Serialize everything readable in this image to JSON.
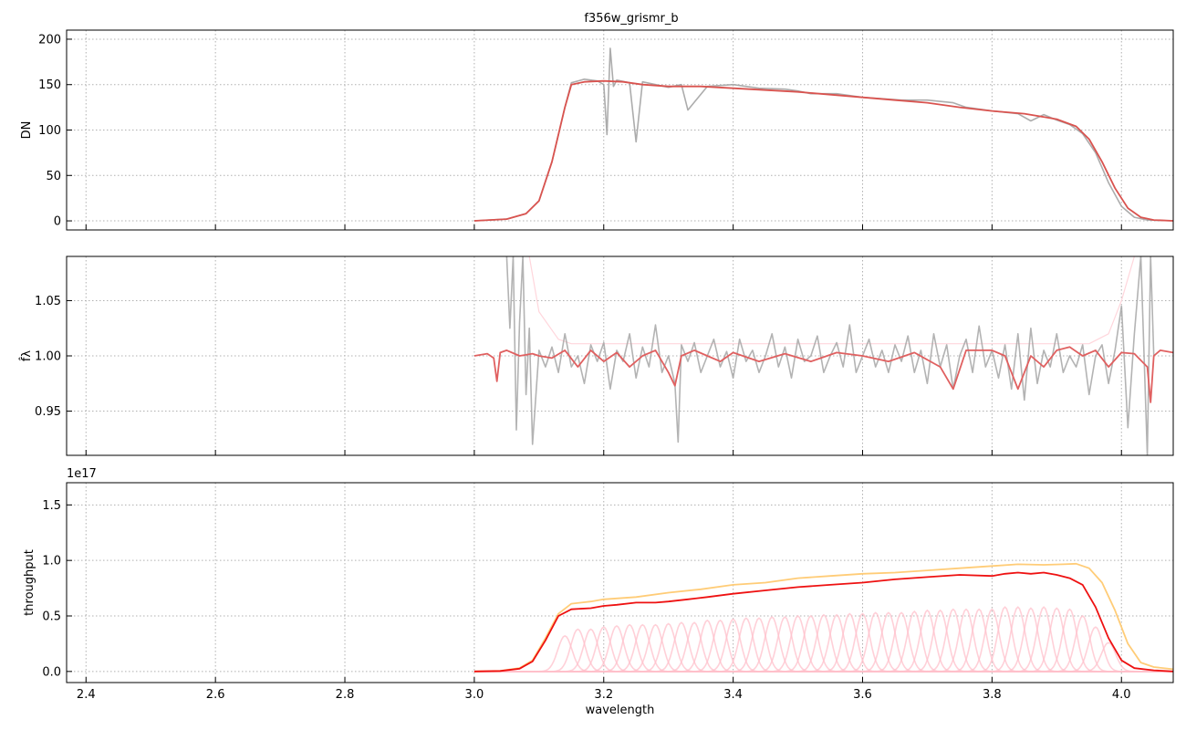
{
  "figure_title": "f356w_grismr_b",
  "chart_data": [
    {
      "type": "line",
      "id": "flux",
      "ylabel": "DN",
      "xlim": [
        2.37,
        4.08
      ],
      "ylim": [
        -10,
        210
      ],
      "yticks": [
        0,
        50,
        100,
        150,
        200
      ],
      "xticks": [
        2.4,
        2.6,
        2.8,
        3.0,
        3.2,
        3.4,
        3.6,
        3.8,
        4.0
      ],
      "show_xtick_labels": false,
      "grid": true,
      "series": [
        {
          "role": "data",
          "color": "#9e9e9e",
          "x": [
            3.0,
            3.05,
            3.08,
            3.1,
            3.12,
            3.14,
            3.15,
            3.17,
            3.19,
            3.2,
            3.205,
            3.21,
            3.215,
            3.22,
            3.24,
            3.25,
            3.26,
            3.28,
            3.3,
            3.32,
            3.33,
            3.36,
            3.4,
            3.44,
            3.48,
            3.5,
            3.52,
            3.56,
            3.6,
            3.64,
            3.66,
            3.7,
            3.74,
            3.76,
            3.8,
            3.84,
            3.86,
            3.88,
            3.9,
            3.92,
            3.94,
            3.96,
            3.98,
            4.0,
            4.02,
            4.04,
            4.08
          ],
          "y": [
            0,
            2,
            8,
            22,
            65,
            125,
            152,
            156,
            154,
            150,
            95,
            190,
            148,
            155,
            152,
            87,
            153,
            150,
            147,
            150,
            122,
            148,
            150,
            146,
            145,
            143,
            140,
            140,
            136,
            134,
            133,
            133,
            130,
            125,
            121,
            118,
            110,
            117,
            111,
            106,
            96,
            75,
            42,
            16,
            4,
            1,
            0
          ]
        },
        {
          "role": "model",
          "color": "#d9534f",
          "x": [
            3.0,
            3.05,
            3.08,
            3.1,
            3.12,
            3.14,
            3.15,
            3.17,
            3.2,
            3.23,
            3.26,
            3.3,
            3.35,
            3.4,
            3.45,
            3.5,
            3.55,
            3.6,
            3.65,
            3.7,
            3.75,
            3.8,
            3.85,
            3.9,
            3.93,
            3.95,
            3.97,
            3.99,
            4.01,
            4.03,
            4.05,
            4.08
          ],
          "y": [
            0,
            2,
            8,
            22,
            65,
            125,
            150,
            153,
            154,
            153,
            150,
            148,
            148,
            146,
            144,
            142,
            139,
            136,
            133,
            130,
            125,
            121,
            118,
            112,
            104,
            90,
            65,
            36,
            14,
            4,
            1,
            0
          ]
        }
      ]
    },
    {
      "type": "line",
      "id": "normalized",
      "ylabel": "f̂λ",
      "xlim": [
        2.37,
        4.08
      ],
      "ylim": [
        0.91,
        1.09
      ],
      "yticks": [
        0.95,
        1.0,
        1.05
      ],
      "ytick_labels": [
        "0.95",
        "1.00",
        "1.05"
      ],
      "xticks": [
        2.4,
        2.6,
        2.8,
        3.0,
        3.2,
        3.4,
        3.6,
        3.8,
        4.0
      ],
      "show_xtick_labels": false,
      "grid": true,
      "series": [
        {
          "role": "envelope",
          "color": "#ffd6dc",
          "x": [
            3.085,
            3.1,
            3.13,
            3.15,
            3.2,
            3.4,
            3.6,
            3.8,
            3.95,
            3.98,
            4.0,
            4.02
          ],
          "y": [
            1.09,
            1.04,
            1.015,
            1.011,
            1.011,
            1.011,
            1.011,
            1.011,
            1.011,
            1.02,
            1.05,
            1.09
          ]
        },
        {
          "role": "data",
          "color": "#a6a6a6",
          "x": [
            3.05,
            3.055,
            3.06,
            3.065,
            3.07,
            3.075,
            3.08,
            3.085,
            3.09,
            3.1,
            3.11,
            3.12,
            3.13,
            3.14,
            3.15,
            3.16,
            3.17,
            3.18,
            3.19,
            3.2,
            3.21,
            3.22,
            3.23,
            3.24,
            3.25,
            3.26,
            3.27,
            3.28,
            3.29,
            3.3,
            3.31,
            3.315,
            3.32,
            3.33,
            3.34,
            3.35,
            3.36,
            3.37,
            3.38,
            3.39,
            3.4,
            3.41,
            3.42,
            3.43,
            3.44,
            3.45,
            3.46,
            3.47,
            3.48,
            3.49,
            3.5,
            3.51,
            3.52,
            3.53,
            3.54,
            3.55,
            3.56,
            3.57,
            3.58,
            3.59,
            3.6,
            3.61,
            3.62,
            3.63,
            3.64,
            3.65,
            3.66,
            3.67,
            3.68,
            3.69,
            3.7,
            3.71,
            3.72,
            3.73,
            3.74,
            3.75,
            3.76,
            3.77,
            3.78,
            3.79,
            3.8,
            3.81,
            3.82,
            3.83,
            3.84,
            3.85,
            3.86,
            3.87,
            3.88,
            3.89,
            3.9,
            3.91,
            3.92,
            3.93,
            3.94,
            3.95,
            3.96,
            3.97,
            3.98,
            3.99,
            4.0,
            4.01,
            4.02,
            4.03,
            4.04,
            4.045,
            4.05
          ],
          "y": [
            1.09,
            1.025,
            1.09,
            0.933,
            1.03,
            1.09,
            0.965,
            1.025,
            0.92,
            1.005,
            0.99,
            1.008,
            0.985,
            1.02,
            0.99,
            1.0,
            0.975,
            1.01,
            0.995,
            1.012,
            0.97,
            1.005,
            0.995,
            1.02,
            0.98,
            1.008,
            0.99,
            1.028,
            0.985,
            1.0,
            0.975,
            0.922,
            1.01,
            0.995,
            1.012,
            0.985,
            1.0,
            1.015,
            0.99,
            1.004,
            0.98,
            1.015,
            0.995,
            1.005,
            0.985,
            1.0,
            1.02,
            0.99,
            1.008,
            0.98,
            1.015,
            0.995,
            1.0,
            1.018,
            0.985,
            1.0,
            1.012,
            0.99,
            1.028,
            0.985,
            1.0,
            1.015,
            0.99,
            1.005,
            0.985,
            1.01,
            0.995,
            1.018,
            0.985,
            1.005,
            0.975,
            1.02,
            0.99,
            1.01,
            0.97,
            1.0,
            1.015,
            0.985,
            1.027,
            0.99,
            1.005,
            0.98,
            1.01,
            0.97,
            1.02,
            0.96,
            1.025,
            0.975,
            1.005,
            0.99,
            1.02,
            0.985,
            1.0,
            0.99,
            1.01,
            0.965,
            1.0,
            1.01,
            0.975,
            1.005,
            1.045,
            0.935,
            1.02,
            1.09,
            0.91,
            1.09,
            1.0
          ]
        },
        {
          "role": "model",
          "color": "#e06060",
          "x": [
            3.0,
            3.02,
            3.03,
            3.035,
            3.04,
            3.05,
            3.07,
            3.09,
            3.1,
            3.12,
            3.14,
            3.16,
            3.18,
            3.2,
            3.22,
            3.24,
            3.26,
            3.28,
            3.3,
            3.31,
            3.32,
            3.34,
            3.36,
            3.38,
            3.4,
            3.44,
            3.48,
            3.52,
            3.56,
            3.6,
            3.64,
            3.68,
            3.72,
            3.74,
            3.76,
            3.8,
            3.82,
            3.84,
            3.86,
            3.88,
            3.9,
            3.92,
            3.94,
            3.96,
            3.98,
            4.0,
            4.02,
            4.04,
            4.045,
            4.05,
            4.06,
            4.08
          ],
          "y": [
            1.0,
            1.002,
            0.998,
            0.977,
            1.003,
            1.005,
            1.0,
            1.002,
            1.0,
            0.998,
            1.005,
            0.99,
            1.005,
            0.995,
            1.003,
            0.99,
            1.0,
            1.005,
            0.985,
            0.973,
            1.0,
            1.005,
            1.0,
            0.995,
            1.003,
            0.995,
            1.002,
            0.995,
            1.003,
            1.0,
            0.995,
            1.003,
            0.99,
            0.97,
            1.005,
            1.005,
            1.0,
            0.97,
            1.0,
            0.99,
            1.005,
            1.008,
            1.0,
            1.005,
            0.99,
            1.003,
            1.002,
            0.99,
            0.958,
            1.0,
            1.005,
            1.003
          ]
        }
      ]
    },
    {
      "type": "line",
      "id": "throughput",
      "ylabel": "throughput",
      "offset_text": "1e17",
      "xlabel": "wavelength",
      "xlim": [
        2.37,
        4.08
      ],
      "ylim": [
        -0.1,
        1.7
      ],
      "yticks": [
        0.0,
        0.5,
        1.0,
        1.5
      ],
      "ytick_labels": [
        "0.0",
        "0.5",
        "1.0",
        "1.5"
      ],
      "xticks": [
        2.4,
        2.6,
        2.8,
        3.0,
        3.2,
        3.4,
        3.6,
        3.8,
        4.0
      ],
      "xtick_labels": [
        "2.4",
        "2.6",
        "2.8",
        "3.0",
        "3.2",
        "3.4",
        "3.6",
        "3.8",
        "4.0"
      ],
      "show_xtick_labels": true,
      "grid": true,
      "components": {
        "color": "#ffc0cb",
        "centers": [
          3.14,
          3.16,
          3.18,
          3.2,
          3.22,
          3.24,
          3.26,
          3.28,
          3.3,
          3.32,
          3.34,
          3.36,
          3.38,
          3.4,
          3.42,
          3.44,
          3.46,
          3.48,
          3.5,
          3.52,
          3.54,
          3.56,
          3.58,
          3.6,
          3.62,
          3.64,
          3.66,
          3.68,
          3.7,
          3.72,
          3.74,
          3.76,
          3.78,
          3.8,
          3.82,
          3.84,
          3.86,
          3.88,
          3.9,
          3.92,
          3.94,
          3.96,
          3.98
        ],
        "peaks": [
          0.32,
          0.38,
          0.38,
          0.4,
          0.41,
          0.42,
          0.42,
          0.42,
          0.43,
          0.44,
          0.44,
          0.46,
          0.46,
          0.47,
          0.48,
          0.48,
          0.49,
          0.49,
          0.5,
          0.5,
          0.51,
          0.51,
          0.52,
          0.52,
          0.53,
          0.53,
          0.53,
          0.54,
          0.55,
          0.55,
          0.56,
          0.56,
          0.56,
          0.56,
          0.58,
          0.58,
          0.57,
          0.58,
          0.57,
          0.56,
          0.5,
          0.4,
          0.26
        ],
        "sigma": 0.011,
        "baseline": 0.0,
        "range": [
          3.0,
          4.08
        ]
      },
      "series": [
        {
          "role": "total",
          "color": "#ffcc77",
          "x": [
            3.0,
            3.04,
            3.07,
            3.09,
            3.11,
            3.13,
            3.15,
            3.18,
            3.2,
            3.25,
            3.3,
            3.35,
            3.4,
            3.45,
            3.5,
            3.55,
            3.6,
            3.65,
            3.7,
            3.75,
            3.8,
            3.84,
            3.88,
            3.91,
            3.93,
            3.95,
            3.97,
            3.99,
            4.01,
            4.03,
            4.05,
            4.08
          ],
          "y": [
            0.0,
            0.005,
            0.03,
            0.1,
            0.3,
            0.52,
            0.61,
            0.63,
            0.65,
            0.67,
            0.71,
            0.74,
            0.78,
            0.8,
            0.84,
            0.86,
            0.88,
            0.89,
            0.91,
            0.93,
            0.95,
            0.965,
            0.96,
            0.965,
            0.97,
            0.93,
            0.8,
            0.55,
            0.25,
            0.08,
            0.04,
            0.02
          ]
        },
        {
          "role": "mean",
          "color": "#ee1111",
          "x": [
            3.0,
            3.04,
            3.07,
            3.09,
            3.11,
            3.13,
            3.15,
            3.18,
            3.2,
            3.22,
            3.25,
            3.28,
            3.3,
            3.33,
            3.36,
            3.4,
            3.45,
            3.5,
            3.55,
            3.6,
            3.65,
            3.7,
            3.75,
            3.8,
            3.82,
            3.84,
            3.86,
            3.88,
            3.9,
            3.92,
            3.94,
            3.96,
            3.98,
            4.0,
            4.02,
            4.05,
            4.08
          ],
          "y": [
            0.0,
            0.004,
            0.025,
            0.09,
            0.28,
            0.5,
            0.56,
            0.57,
            0.59,
            0.6,
            0.62,
            0.62,
            0.63,
            0.65,
            0.67,
            0.7,
            0.73,
            0.76,
            0.78,
            0.8,
            0.83,
            0.85,
            0.87,
            0.86,
            0.88,
            0.89,
            0.88,
            0.89,
            0.87,
            0.84,
            0.78,
            0.58,
            0.3,
            0.1,
            0.03,
            0.01,
            0.0
          ]
        }
      ]
    }
  ]
}
